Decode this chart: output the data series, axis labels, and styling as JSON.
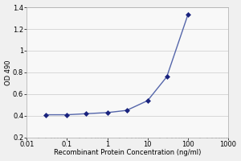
{
  "x_values": [
    0.03,
    0.1,
    0.3,
    1,
    3,
    10,
    30,
    100
  ],
  "y_values": [
    0.41,
    0.41,
    0.42,
    0.43,
    0.45,
    0.54,
    0.76,
    1.33
  ],
  "line_color": "#5566aa",
  "marker_color": "#1a237e",
  "marker_style": "D",
  "marker_size": 3,
  "line_width": 1.0,
  "xlabel": "Recombinant Protein Concentration (ng/ml)",
  "ylabel": "OD 490",
  "xlim": [
    0.01,
    1000
  ],
  "ylim": [
    0.2,
    1.4
  ],
  "yticks": [
    0.2,
    0.4,
    0.6,
    0.8,
    1.0,
    1.2,
    1.4
  ],
  "background_color": "#f0f0f0",
  "plot_bg_color": "#f8f8f8",
  "grid_color": "#d8d8d8",
  "axis_fontsize": 6,
  "tick_fontsize": 6,
  "ylabel_fontsize": 6
}
